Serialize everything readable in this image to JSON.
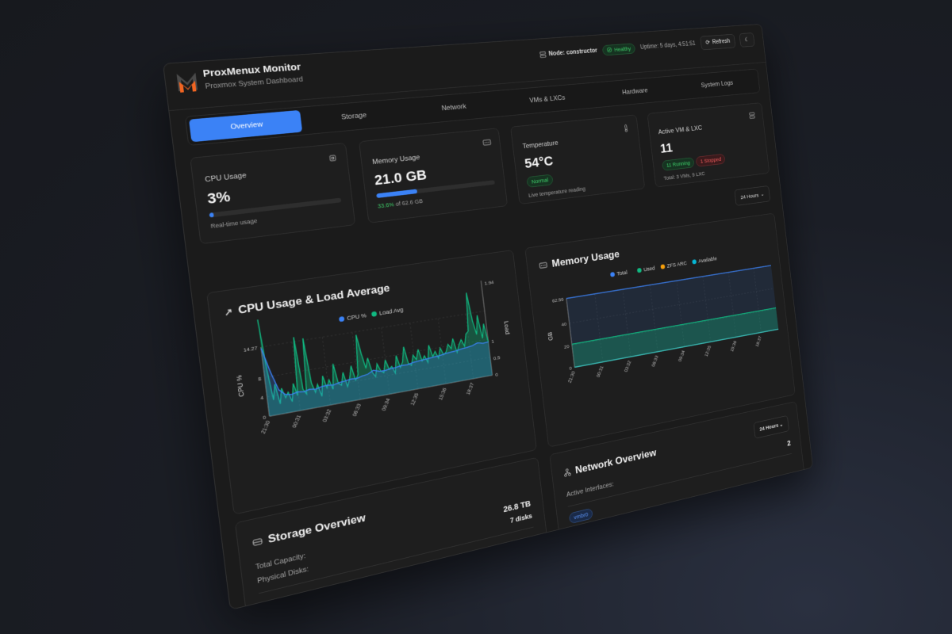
{
  "header": {
    "title": "ProxMenux Monitor",
    "subtitle": "Proxmox System Dashboard",
    "node_label": "Node: constructor",
    "status": "Healthy",
    "uptime": "Uptime: 5 days, 4:51:51",
    "refresh": "Refresh",
    "theme_icon": "moon-icon"
  },
  "tabs": [
    {
      "label": "Overview",
      "active": true
    },
    {
      "label": "Storage"
    },
    {
      "label": "Network"
    },
    {
      "label": "VMs & LXCs"
    },
    {
      "label": "Hardware"
    },
    {
      "label": "System Logs"
    }
  ],
  "cards": {
    "cpu": {
      "label": "CPU Usage",
      "value": "3%",
      "percent": 3,
      "note": "Real-time usage"
    },
    "memory": {
      "label": "Memory Usage",
      "value": "21.0 GB",
      "percent": 33.6,
      "percent_text": "33.6%",
      "of_text": "of 62.6 GB"
    },
    "temperature": {
      "label": "Temperature",
      "value": "54°C",
      "status": "Normal",
      "note": "Live temperature reading"
    },
    "vms": {
      "label": "Active VM & LXC",
      "value": "11",
      "running": "11 Running",
      "stopped": "1 Stopped",
      "note": "Total: 3 VMs, 9 LXC"
    }
  },
  "time_select": "24 Hours",
  "colors": {
    "accent": "#3b82f6",
    "green": "#10b981",
    "orange": "#f59e0b",
    "cyan": "#06b6d4"
  },
  "chart_data": [
    {
      "type": "area",
      "title": "CPU Usage & Load Average",
      "ylabel": "CPU %",
      "y2label": "Load",
      "x_ticks": [
        "21:30",
        "00:31",
        "03:32",
        "06:33",
        "09:34",
        "12:35",
        "15:36",
        "18:37"
      ],
      "ylim": [
        0,
        14.27
      ],
      "y_ticks": [
        0,
        4,
        8,
        14.27
      ],
      "y2lim": [
        0,
        1.94
      ],
      "y2_ticks": [
        0,
        0.5,
        1,
        1.94
      ],
      "legend": "top",
      "grid": true,
      "series": [
        {
          "name": "CPU %",
          "axis": "left",
          "values": [
            14,
            9,
            5,
            3.8,
            3.6,
            3.9,
            3.7,
            4,
            3.8,
            4.1,
            4.2,
            4,
            4.3,
            4.4,
            4.6,
            4.5,
            4.8,
            5,
            5.6,
            5.2,
            5.1,
            5.3,
            5.4,
            5.6,
            5.5,
            5.8,
            5.9,
            6,
            6.1,
            6.2,
            6.3,
            6.5,
            6.6,
            6.7,
            6.9,
            7,
            7.2,
            7.6,
            7.3,
            7.4
          ]
        },
        {
          "name": "Load Avg",
          "axis": "right",
          "values": [
            1.9,
            0.9,
            0.3,
            0.6,
            0.2,
            0.5,
            0.3,
            0.4,
            0.2,
            0.55,
            0.3,
            1.45,
            0.4,
            0.3,
            1.4,
            0.5,
            0.3,
            0.45,
            0.2,
            0.6,
            0.35,
            0.5,
            0.3,
            0.8,
            0.4,
            0.35,
            0.6,
            0.3,
            0.45,
            0.7,
            0.4,
            0.5,
            1.3,
            0.9,
            0.6,
            0.8,
            0.5,
            0.4,
            0.65,
            0.5,
            0.45,
            0.7,
            0.5,
            0.55,
            0.4,
            0.75,
            0.5,
            0.6,
            0.9,
            0.55,
            0.5,
            0.7,
            0.6,
            0.8,
            0.55,
            0.65,
            0.5,
            0.85,
            0.6,
            0.7,
            0.55,
            0.75,
            0.6,
            0.65,
            0.8,
            0.7,
            0.9,
            0.6,
            0.75,
            0.85,
            0.7,
            0.95,
            1.0,
            1.8,
            1.2,
            0.9,
            1.3,
            0.8,
            1.1,
            0.7
          ]
        }
      ]
    },
    {
      "type": "area",
      "title": "Memory Usage",
      "ylabel": "GB",
      "x_ticks": [
        "21:30",
        "00:31",
        "03:32",
        "06:33",
        "09:34",
        "12:35",
        "15:36",
        "18:37"
      ],
      "ylim": [
        0,
        62.56
      ],
      "y_ticks": [
        0,
        20,
        40,
        62.56
      ],
      "legend": "top",
      "grid": true,
      "series": [
        {
          "name": "Total",
          "values": [
            62.56,
            62.56
          ]
        },
        {
          "name": "Used",
          "values": [
            21.0,
            21.0
          ]
        },
        {
          "name": "ZFS ARC",
          "values": [
            0,
            0
          ]
        },
        {
          "name": "Available",
          "values": [
            0,
            0
          ]
        }
      ]
    }
  ],
  "storage": {
    "title": "Storage Overview",
    "capacity_label": "Total Capacity:",
    "capacity": "26.8 TB",
    "disks_label": "Physical Disks:",
    "disks": "7 disks"
  },
  "network": {
    "title": "Network Overview",
    "interfaces_label": "Active Interfaces:",
    "interfaces": "2",
    "iface": "vmbr0"
  }
}
